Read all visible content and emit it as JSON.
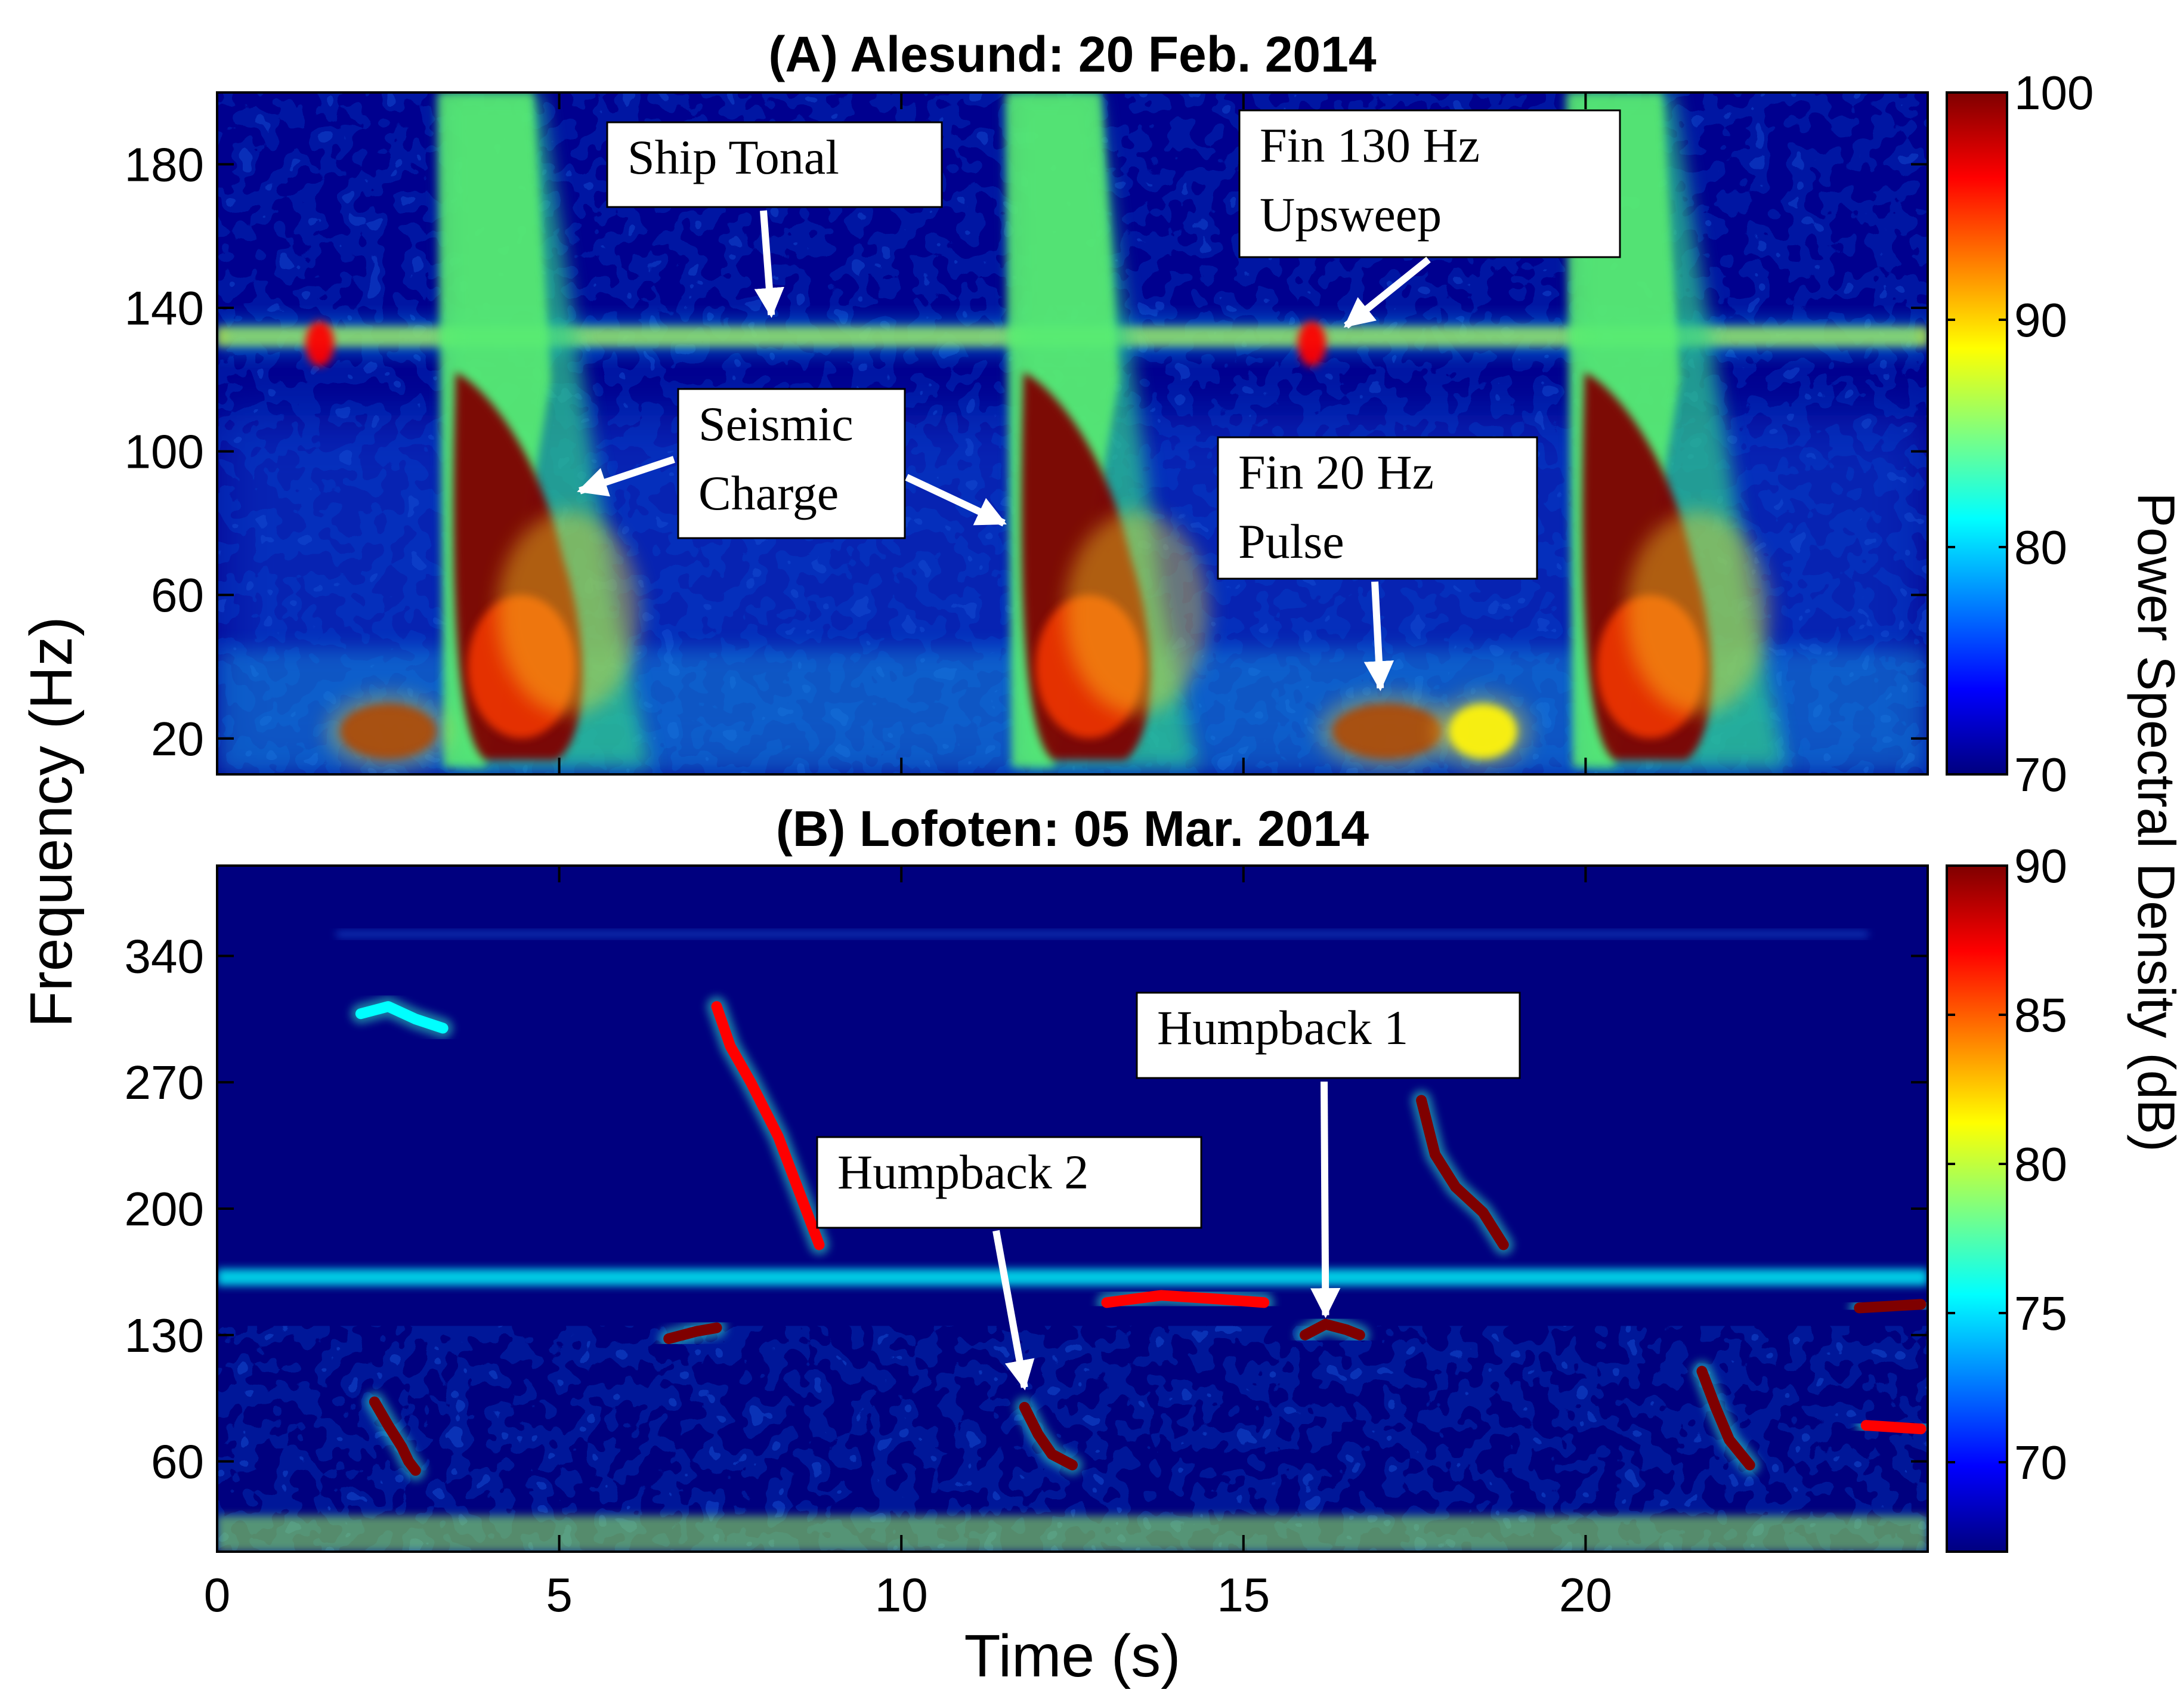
{
  "figure": {
    "shared_ylabel": "Frequency (Hz)",
    "shared_xlabel": "Time (s)",
    "shared_colorbar_label": "Power Spectral Density (dB)"
  },
  "chart_data": [
    {
      "type": "heatmap",
      "title": "(A) Alesund: 20 Feb. 2014",
      "xlabel": "Time (s)",
      "ylabel": "Frequency (Hz)",
      "xlim": [
        0,
        25
      ],
      "ylim": [
        10,
        200
      ],
      "xticks": [
        0,
        5,
        10,
        15,
        20
      ],
      "yticks": [
        20,
        60,
        100,
        140,
        180
      ],
      "colorbar": {
        "label": "Power Spectral Density (dB)",
        "min": 70,
        "max": 100,
        "ticks": [
          70,
          80,
          90,
          100
        ]
      },
      "colormap": [
        "#00007f",
        "#0000ff",
        "#007fff",
        "#00ffff",
        "#7fff7f",
        "#ffff00",
        "#ff7f00",
        "#ff0000",
        "#7f0000"
      ],
      "annotations": [
        {
          "text": [
            "Ship Tonal"
          ],
          "target_time_s": 8.1,
          "target_freq_hz": 138
        },
        {
          "text": [
            "Fin 130 Hz",
            "Upsweep"
          ],
          "target_time_s": 16.5,
          "target_freq_hz": 135
        },
        {
          "text": [
            "Seismic",
            "Charge"
          ],
          "target_time_s": 5.3,
          "target_freq_hz": 89,
          "second_target_time_s": 11.5,
          "second_target_freq_hz": 80
        },
        {
          "text": [
            "Fin 20 Hz",
            "Pulse"
          ],
          "target_time_s": 17.0,
          "target_freq_hz": 34
        }
      ],
      "features": {
        "ship_tonal": {
          "freq_hz": 132,
          "level_db": 87
        },
        "fin_20hz_pulses": [
          {
            "start_s": 1.8,
            "end_s": 3.2,
            "freq_hz": 22,
            "level_db": 100
          },
          {
            "start_s": 16.3,
            "end_s": 17.9,
            "freq_hz": 22,
            "level_db": 100
          },
          {
            "start_s": 18.0,
            "end_s": 19.0,
            "freq_hz": 22,
            "level_db": 87
          }
        ],
        "fin_130hz_upsweeps": [
          {
            "time_s": 1.5,
            "freq_hz": 130,
            "level_db": 96
          },
          {
            "time_s": 16.0,
            "freq_hz": 130,
            "level_db": 96
          }
        ],
        "seismic_charges": [
          {
            "onset_s": 3.4,
            "tail_end_s": 5.8,
            "level_db": 100
          },
          {
            "onset_s": 11.7,
            "tail_end_s": 13.8,
            "level_db": 100
          },
          {
            "onset_s": 19.9,
            "tail_end_s": 22.4,
            "level_db": 100
          }
        ]
      }
    },
    {
      "type": "heatmap",
      "title": "(B) Lofoten: 05 Mar. 2014",
      "xlabel": "Time (s)",
      "ylabel": "Frequency (Hz)",
      "xlim": [
        0,
        25
      ],
      "ylim": [
        10,
        390
      ],
      "xticks": [
        0,
        5,
        10,
        15,
        20
      ],
      "yticks": [
        60,
        130,
        200,
        270,
        340
      ],
      "colorbar": {
        "label": "Power Spectral Density (dB)",
        "min": 67,
        "max": 90,
        "ticks": [
          70,
          75,
          80,
          85,
          90
        ]
      },
      "colormap": [
        "#00007f",
        "#0000ff",
        "#007fff",
        "#00ffff",
        "#7fff7f",
        "#ffff00",
        "#ff7f00",
        "#ff0000",
        "#7f0000"
      ],
      "annotations": [
        {
          "text": [
            "Humpback 1"
          ],
          "target_time_s": 16.2,
          "target_freq_hz": 141
        },
        {
          "text": [
            "Humpback 2"
          ],
          "target_time_s": 11.8,
          "target_freq_hz": 101
        }
      ],
      "features": {
        "tonal_band": {
          "freq_hz": 162,
          "level_db": 76
        },
        "calls": [
          {
            "points": [
              [
                2.3,
                93
              ],
              [
                2.5,
                80
              ],
              [
                2.7,
                68
              ],
              [
                2.8,
                60
              ],
              [
                2.9,
                55
              ]
            ],
            "level_db": 90
          },
          {
            "points": [
              [
                2.1,
                308
              ],
              [
                2.5,
                312
              ],
              [
                2.9,
                305
              ],
              [
                3.3,
                300
              ]
            ],
            "level_db": 76
          },
          {
            "points": [
              [
                7.3,
                312
              ],
              [
                7.5,
                290
              ],
              [
                7.8,
                270
              ],
              [
                8.2,
                240
              ],
              [
                8.6,
                200
              ],
              [
                8.8,
                180
              ]
            ],
            "level_db": 86
          },
          {
            "points": [
              [
                6.6,
                128
              ],
              [
                7.0,
                132
              ],
              [
                7.3,
                134
              ]
            ],
            "level_db": 90
          },
          {
            "points": [
              [
                11.8,
                90
              ],
              [
                12.0,
                75
              ],
              [
                12.2,
                64
              ],
              [
                12.5,
                58
              ]
            ],
            "level_db": 90
          },
          {
            "points": [
              [
                13.0,
                148
              ],
              [
                13.8,
                152
              ],
              [
                14.6,
                150
              ],
              [
                15.3,
                148
              ]
            ],
            "level_db": 88
          },
          {
            "points": [
              [
                15.9,
                130
              ],
              [
                16.2,
                136
              ],
              [
                16.5,
                133
              ],
              [
                16.7,
                130
              ]
            ],
            "level_db": 90
          },
          {
            "points": [
              [
                17.6,
                260
              ],
              [
                17.8,
                230
              ],
              [
                18.1,
                212
              ],
              [
                18.5,
                198
              ],
              [
                18.8,
                180
              ]
            ],
            "level_db": 90
          },
          {
            "points": [
              [
                21.7,
                110
              ],
              [
                21.9,
                90
              ],
              [
                22.1,
                72
              ],
              [
                22.4,
                58
              ]
            ],
            "level_db": 90
          },
          {
            "points": [
              [
                24.0,
                145
              ],
              [
                24.9,
                147
              ]
            ],
            "level_db": 90
          },
          {
            "points": [
              [
                24.1,
                80
              ],
              [
                24.9,
                78
              ]
            ],
            "level_db": 86
          }
        ]
      }
    }
  ]
}
